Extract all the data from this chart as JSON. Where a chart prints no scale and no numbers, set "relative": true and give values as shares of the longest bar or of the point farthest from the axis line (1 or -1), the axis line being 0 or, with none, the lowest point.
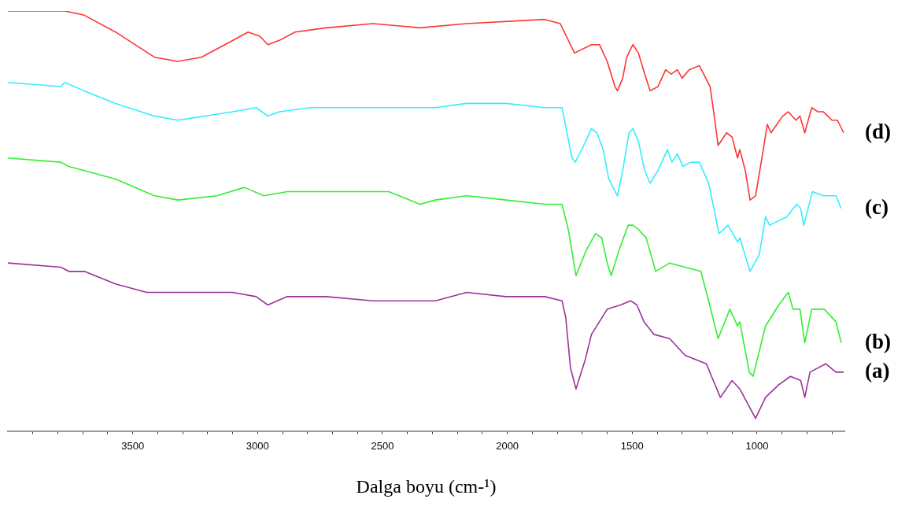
{
  "chart_data": {
    "type": "line",
    "relative": true,
    "xlabel": "Dalga boyu (cm-¹)",
    "xlim": [
      4000,
      650
    ],
    "xticks": [
      {
        "value": 3900,
        "label": null
      },
      {
        "value": 3800,
        "label": null
      },
      {
        "value": 3700,
        "label": null
      },
      {
        "value": 3600,
        "label": null
      },
      3500,
      {
        "value": 3400,
        "label": null
      },
      {
        "value": 3300,
        "label": null
      },
      {
        "value": 3200,
        "label": null
      },
      {
        "value": 3100,
        "label": null
      },
      3000,
      {
        "value": 2900,
        "label": null
      },
      {
        "value": 2800,
        "label": null
      },
      {
        "value": 2700,
        "label": null
      },
      {
        "value": 2600,
        "label": null
      },
      2500,
      {
        "value": 2400,
        "label": null
      },
      {
        "value": 2300,
        "label": null
      },
      {
        "value": 2200,
        "label": null
      },
      {
        "value": 2100,
        "label": null
      },
      2000,
      {
        "value": 1900,
        "label": null
      },
      {
        "value": 1800,
        "label": null
      },
      {
        "value": 1700,
        "label": null
      },
      {
        "value": 1600,
        "label": null
      },
      1500,
      {
        "value": 1400,
        "label": null
      },
      {
        "value": 1300,
        "label": null
      },
      {
        "value": 1200,
        "label": null
      },
      {
        "value": 1100,
        "label": null
      },
      1000,
      {
        "value": 900,
        "label": null
      },
      {
        "value": 800,
        "label": null
      },
      {
        "value": 700,
        "label": null
      }
    ],
    "grid": false,
    "legend": false,
    "marker": "none",
    "line_style": "solid",
    "series": [
      {
        "name": "(d)",
        "color": "#ff3333",
        "x": [
          4000,
          3772,
          3694,
          3569,
          3413,
          3319,
          3225,
          3131,
          3038,
          2991,
          2959,
          2913,
          2850,
          2725,
          2538,
          2350,
          2163,
          1850,
          1788,
          1731,
          1663,
          1631,
          1600,
          1569,
          1559,
          1538,
          1522,
          1497,
          1475,
          1450,
          1428,
          1397,
          1366,
          1344,
          1319,
          1300,
          1272,
          1231,
          1188,
          1169,
          1156,
          1122,
          1100,
          1078,
          1069,
          1047,
          1028,
          1006,
          975,
          959,
          944,
          897,
          875,
          844,
          828,
          809,
          781,
          756,
          734,
          700,
          678,
          653
        ],
        "values": [
          1.0,
          1.0,
          0.99,
          0.95,
          0.89,
          0.88,
          0.89,
          0.92,
          0.95,
          0.94,
          0.92,
          0.93,
          0.95,
          0.96,
          0.97,
          0.96,
          0.97,
          0.98,
          0.97,
          0.9,
          0.92,
          0.92,
          0.88,
          0.82,
          0.81,
          0.84,
          0.89,
          0.92,
          0.9,
          0.85,
          0.81,
          0.82,
          0.86,
          0.85,
          0.86,
          0.84,
          0.86,
          0.87,
          0.82,
          0.74,
          0.68,
          0.71,
          0.7,
          0.65,
          0.67,
          0.62,
          0.55,
          0.56,
          0.67,
          0.73,
          0.71,
          0.75,
          0.76,
          0.74,
          0.75,
          0.71,
          0.77,
          0.76,
          0.76,
          0.74,
          0.74,
          0.71
        ]
      },
      {
        "name": "(c)",
        "color": "#33eeff",
        "x": [
          4000,
          3788,
          3772,
          3694,
          3569,
          3413,
          3319,
          3100,
          3006,
          2959,
          2913,
          2788,
          2475,
          2288,
          2163,
          2006,
          1850,
          1781,
          1741,
          1728,
          1694,
          1663,
          1641,
          1616,
          1594,
          1559,
          1538,
          1513,
          1497,
          1475,
          1450,
          1428,
          1397,
          1359,
          1341,
          1319,
          1297,
          1266,
          1231,
          1194,
          1169,
          1153,
          1116,
          1078,
          1069,
          1028,
          991,
          966,
          950,
          881,
          841,
          825,
          813,
          778,
          734,
          703,
          684,
          663
        ],
        "values": [
          0.83,
          0.82,
          0.83,
          0.81,
          0.78,
          0.75,
          0.74,
          0.76,
          0.77,
          0.75,
          0.76,
          0.77,
          0.77,
          0.77,
          0.78,
          0.78,
          0.77,
          0.77,
          0.65,
          0.64,
          0.68,
          0.72,
          0.71,
          0.67,
          0.6,
          0.56,
          0.62,
          0.71,
          0.72,
          0.69,
          0.62,
          0.59,
          0.62,
          0.67,
          0.64,
          0.66,
          0.63,
          0.64,
          0.64,
          0.59,
          0.52,
          0.47,
          0.49,
          0.45,
          0.46,
          0.38,
          0.42,
          0.51,
          0.49,
          0.51,
          0.54,
          0.53,
          0.49,
          0.57,
          0.56,
          0.56,
          0.56,
          0.53
        ]
      },
      {
        "name": "(b)",
        "color": "#33ee33",
        "x": [
          4000,
          3788,
          3756,
          3694,
          3569,
          3413,
          3319,
          3163,
          3053,
          2975,
          2881,
          2788,
          2475,
          2350,
          2288,
          2163,
          2006,
          1850,
          1781,
          1756,
          1725,
          1684,
          1647,
          1622,
          1600,
          1584,
          1553,
          1516,
          1497,
          1475,
          1444,
          1406,
          1350,
          1288,
          1225,
          1194,
          1156,
          1109,
          1078,
          1069,
          1031,
          1016,
          966,
          913,
          875,
          856,
          828,
          809,
          781,
          756,
          731,
          684,
          663
        ],
        "values": [
          0.65,
          0.64,
          0.63,
          0.62,
          0.6,
          0.56,
          0.55,
          0.56,
          0.58,
          0.56,
          0.57,
          0.57,
          0.57,
          0.54,
          0.55,
          0.56,
          0.55,
          0.54,
          0.54,
          0.48,
          0.37,
          0.43,
          0.47,
          0.46,
          0.4,
          0.37,
          0.43,
          0.49,
          0.49,
          0.48,
          0.46,
          0.38,
          0.4,
          0.39,
          0.38,
          0.31,
          0.22,
          0.29,
          0.25,
          0.26,
          0.14,
          0.13,
          0.25,
          0.3,
          0.33,
          0.29,
          0.29,
          0.21,
          0.29,
          0.29,
          0.29,
          0.26,
          0.21
        ]
      },
      {
        "name": "(a)",
        "color": "#993399",
        "x": [
          4000,
          3788,
          3756,
          3694,
          3569,
          3444,
          3319,
          3100,
          3006,
          2959,
          2881,
          2725,
          2538,
          2381,
          2288,
          2163,
          2006,
          1850,
          1781,
          1766,
          1747,
          1725,
          1688,
          1663,
          1600,
          1547,
          1506,
          1481,
          1453,
          1413,
          1350,
          1288,
          1203,
          1147,
          1100,
          1069,
          1006,
          966,
          913,
          866,
          825,
          809,
          788,
          725,
          684,
          653
        ],
        "values": [
          0.4,
          0.39,
          0.38,
          0.38,
          0.35,
          0.33,
          0.33,
          0.33,
          0.32,
          0.3,
          0.32,
          0.32,
          0.31,
          0.31,
          0.31,
          0.33,
          0.32,
          0.32,
          0.31,
          0.27,
          0.15,
          0.1,
          0.17,
          0.23,
          0.29,
          0.3,
          0.31,
          0.3,
          0.26,
          0.23,
          0.22,
          0.18,
          0.16,
          0.08,
          0.12,
          0.1,
          0.03,
          0.08,
          0.11,
          0.13,
          0.12,
          0.08,
          0.14,
          0.16,
          0.14,
          0.14
        ]
      }
    ]
  }
}
